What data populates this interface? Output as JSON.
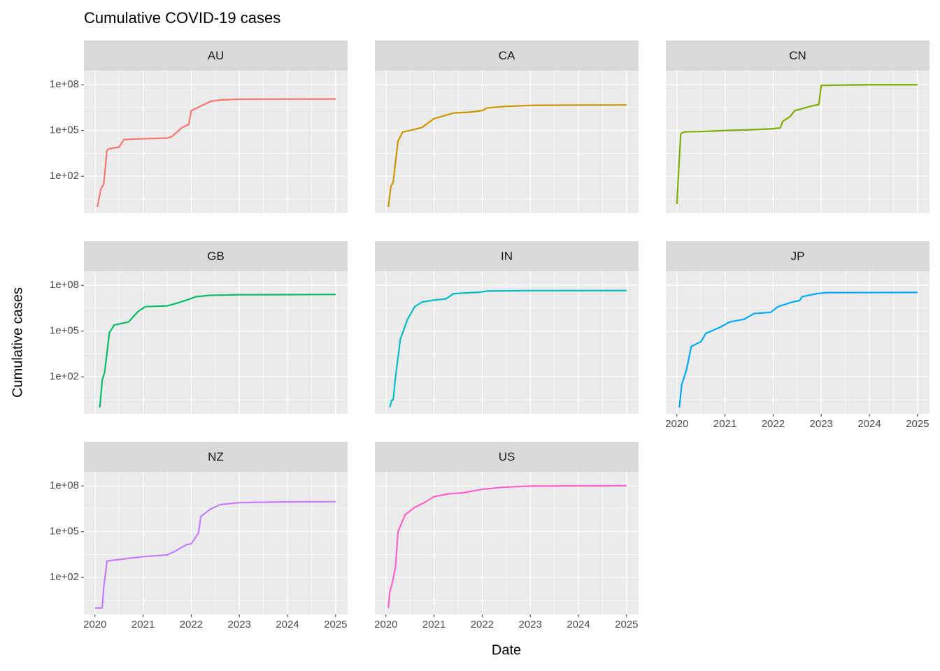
{
  "chart_data": {
    "type": "line",
    "title": "Cumulative COVID-19 cases",
    "xlabel": "Date",
    "ylabel": "Cumulative cases",
    "log_y": true,
    "grid": true,
    "xlim": [
      2019.77,
      2025.25
    ],
    "xticks": [
      2020,
      2021,
      2022,
      2023,
      2024,
      2025
    ],
    "ylim": [
      0.38,
      840000000
    ],
    "yticks": [
      {
        "value": 100,
        "label": "1e+02"
      },
      {
        "value": 100000,
        "label": "1e+05"
      },
      {
        "value": 100000000,
        "label": "1e+08"
      }
    ],
    "series": [
      {
        "name": "AU",
        "color": "#F8766D",
        "x": [
          2020.05,
          2020.12,
          2020.18,
          2020.25,
          2020.3,
          2020.5,
          2020.6,
          2020.75,
          2021,
          2021.5,
          2021.6,
          2021.8,
          2021.95,
          2022.0,
          2022.2,
          2022.4,
          2022.6,
          2023,
          2024,
          2025
        ],
        "values": [
          1,
          14,
          30,
          5000,
          6500,
          8000,
          25000,
          27000,
          28600,
          32000,
          40000,
          150000,
          250000,
          2000000,
          4000000,
          8000000,
          10000000,
          11200000,
          11500000,
          11600000
        ]
      },
      {
        "name": "CA",
        "color": "#CD9600",
        "x": [
          2020.05,
          2020.1,
          2020.15,
          2020.25,
          2020.35,
          2020.5,
          2020.75,
          2021,
          2021.2,
          2021.4,
          2021.75,
          2022,
          2022.1,
          2022.5,
          2023,
          2024,
          2025
        ],
        "values": [
          1,
          20,
          40,
          20000,
          80000,
          100000,
          160000,
          600000,
          900000,
          1400000,
          1600000,
          2000000,
          3000000,
          3800000,
          4400000,
          4600000,
          4700000
        ]
      },
      {
        "name": "CN",
        "color": "#7CAE00",
        "x": [
          2020.0,
          2020.03,
          2020.08,
          2020.15,
          2020.5,
          2021,
          2021.5,
          2022,
          2022.15,
          2022.2,
          2022.35,
          2022.45,
          2022.8,
          2022.95,
          2023.0,
          2024,
          2025
        ],
        "values": [
          1.5,
          100,
          60000,
          81000,
          85000,
          100000,
          110000,
          130000,
          150000,
          400000,
          800000,
          2000000,
          4000000,
          5000000,
          90000000,
          99000000,
          99000000
        ]
      },
      {
        "name": "GB",
        "color": "#00BE67",
        "x": [
          2020.1,
          2020.15,
          2020.2,
          2020.3,
          2020.4,
          2020.7,
          2020.9,
          2021.05,
          2021.5,
          2021.65,
          2021.95,
          2022.1,
          2022.4,
          2023,
          2025
        ],
        "values": [
          1,
          60,
          200,
          80000,
          250000,
          400000,
          2000000,
          4000000,
          4500000,
          6000000,
          12000000,
          18000000,
          22000000,
          24000000,
          25000000
        ]
      },
      {
        "name": "IN",
        "color": "#00BFC4",
        "x": [
          2020.08,
          2020.12,
          2020.15,
          2020.2,
          2020.3,
          2020.45,
          2020.6,
          2020.75,
          2021,
          2021.25,
          2021.4,
          2021.6,
          2021.95,
          2022.1,
          2023,
          2025
        ],
        "values": [
          1,
          3,
          3,
          100,
          30000,
          600000,
          4000000,
          8000000,
          10700000,
          13000000,
          28000000,
          31000000,
          35000000,
          42000000,
          44600000,
          45000000
        ]
      },
      {
        "name": "JP",
        "color": "#00A9FF",
        "x": [
          2020.05,
          2020.1,
          2020.2,
          2020.3,
          2020.5,
          2020.6,
          2020.9,
          2021.1,
          2021.4,
          2021.6,
          2021.95,
          2022.1,
          2022.4,
          2022.55,
          2022.6,
          2022.9,
          2023.1,
          2025
        ],
        "values": [
          1,
          30,
          300,
          10000,
          20000,
          70000,
          180000,
          400000,
          600000,
          1400000,
          1700000,
          4000000,
          8000000,
          10000000,
          18000000,
          28000000,
          33000000,
          34000000
        ]
      },
      {
        "name": "NZ",
        "color": "#C77CFF",
        "x": [
          2020.0,
          2020.15,
          2020.18,
          2020.25,
          2020.5,
          2021,
          2021.5,
          2021.65,
          2021.9,
          2022.0,
          2022.15,
          2022.2,
          2022.4,
          2022.6,
          2023,
          2024,
          2025
        ],
        "values": [
          1,
          1,
          20,
          1200,
          1500,
          2300,
          3000,
          5000,
          14000,
          16000,
          80000,
          1000000,
          3000000,
          6000000,
          8000000,
          9000000,
          9200000
        ]
      },
      {
        "name": "US",
        "color": "#FF61CC",
        "x": [
          2020.05,
          2020.08,
          2020.12,
          2020.2,
          2020.25,
          2020.4,
          2020.6,
          2020.8,
          2021,
          2021.3,
          2021.6,
          2022,
          2022.4,
          2023,
          2025
        ],
        "values": [
          1,
          12,
          30,
          500,
          100000,
          1300000,
          4000000,
          8000000,
          20000000,
          30000000,
          35000000,
          60000000,
          80000000,
          98000000,
          103000000
        ]
      }
    ]
  }
}
